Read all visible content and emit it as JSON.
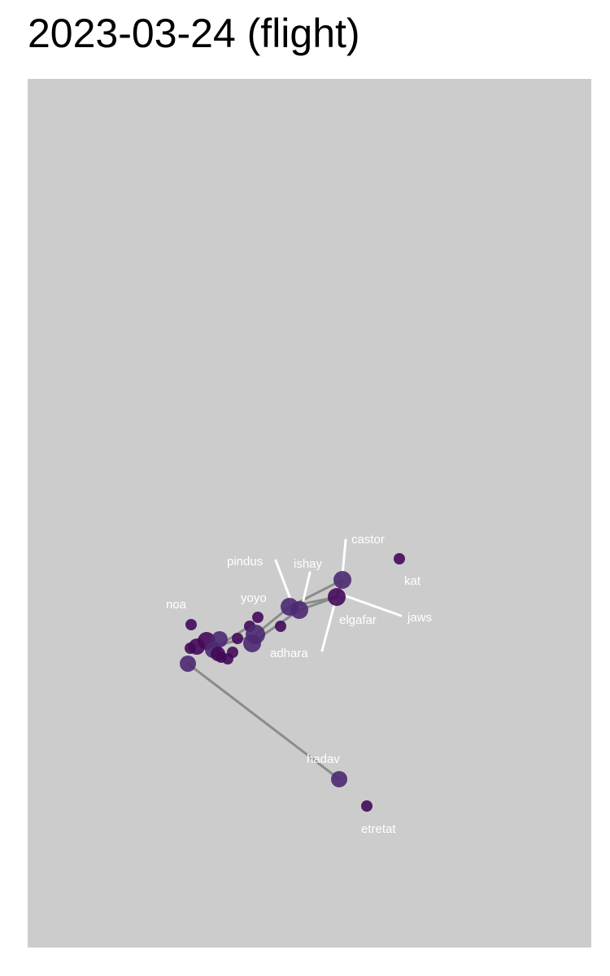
{
  "title": "2023-03-24 (flight)",
  "colors": {
    "panel": "#cccccc",
    "edge": "#808080",
    "node_dark": "#440a5a",
    "node_mid": "#4b2a72",
    "label": "#ffffff"
  },
  "labels": {
    "castor": "castor",
    "kat": "kat",
    "pindus": "pindus",
    "ishay": "ishay",
    "yoyo": "yoyo",
    "noa": "noa",
    "jaws": "jaws",
    "elgafar": "elgafar",
    "adhara": "adhara",
    "hadav": "hadav",
    "etretat": "etretat"
  }
}
